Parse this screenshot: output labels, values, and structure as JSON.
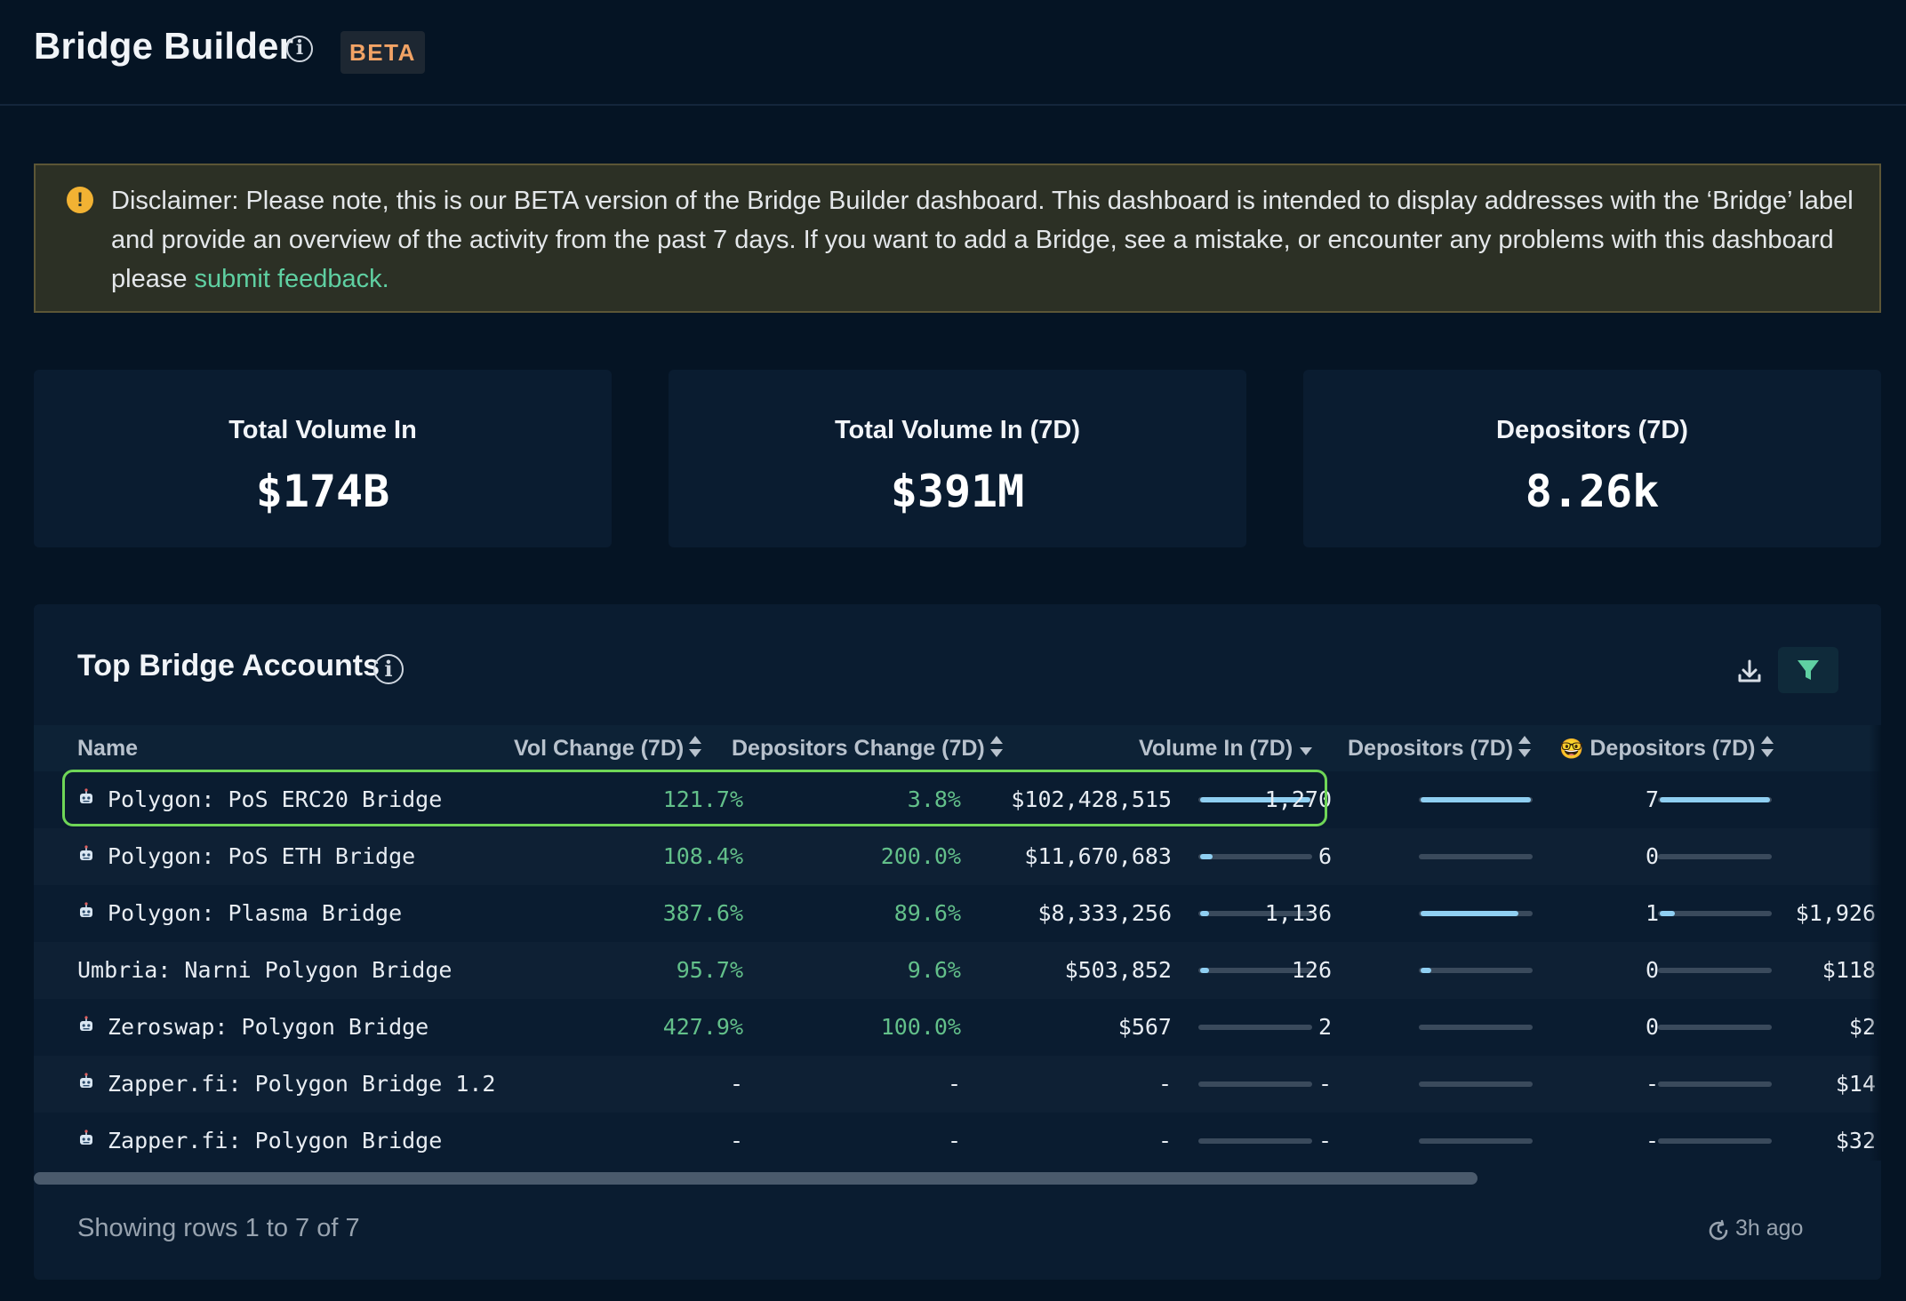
{
  "header": {
    "title": "Bridge Builder",
    "badge": "BETA"
  },
  "disclaimer": {
    "text": "Disclaimer: Please note, this is our BETA version of the Bridge Builder dashboard. This dashboard is intended to display addresses with the ‘Bridge’ label and provide an overview of the activity from the past 7 days. If you want to add a Bridge, see a mistake, or encounter any problems with this dashboard please ",
    "link_text": "submit feedback."
  },
  "stats": [
    {
      "label": "Total Volume In",
      "value": "$174B"
    },
    {
      "label": "Total Volume In (7D)",
      "value": "$391M"
    },
    {
      "label": "Depositors (7D)",
      "value": "8.26k"
    }
  ],
  "table": {
    "title": "Top Bridge Accounts",
    "columns": {
      "name": "Name",
      "vol_change": "Vol Change (7D)",
      "dep_change": "Depositors Change (7D)",
      "volume_in": "Volume In (7D)",
      "depositors": "Depositors (7D)",
      "smart_depositors": "Depositors (7D)",
      "smart_emoji": "🤓"
    },
    "rows": [
      {
        "name": "Polygon: PoS ERC20 Bridge",
        "has_icon": true,
        "vol_change": "121.7%",
        "dep_change": "3.8%",
        "volume_in": "$102,428,515",
        "volume_bar": 1.0,
        "depositors": "1,270",
        "depositors_bar": 1.0,
        "smart": "7",
        "smart_bar": 1.0,
        "extra": ""
      },
      {
        "name": "Polygon: PoS ETH Bridge",
        "has_icon": true,
        "vol_change": "108.4%",
        "dep_change": "200.0%",
        "volume_in": "$11,670,683",
        "volume_bar": 0.11,
        "depositors": "6",
        "depositors_bar": 0.0,
        "smart": "0",
        "smart_bar": 0.0,
        "extra": ""
      },
      {
        "name": "Polygon: Plasma Bridge",
        "has_icon": true,
        "vol_change": "387.6%",
        "dep_change": "89.6%",
        "volume_in": "$8,333,256",
        "volume_bar": 0.08,
        "depositors": "1,136",
        "depositors_bar": 0.89,
        "smart": "1",
        "smart_bar": 0.14,
        "extra": "$1,926"
      },
      {
        "name": "Umbria: Narni Polygon Bridge",
        "has_icon": false,
        "vol_change": "95.7%",
        "dep_change": "9.6%",
        "volume_in": "$503,852",
        "volume_bar": 0.005,
        "depositors": "126",
        "depositors_bar": 0.1,
        "smart": "0",
        "smart_bar": 0.0,
        "extra": "$118"
      },
      {
        "name": "Zeroswap: Polygon Bridge",
        "has_icon": true,
        "vol_change": "427.9%",
        "dep_change": "100.0%",
        "volume_in": "$567",
        "volume_bar": 0.0,
        "depositors": "2",
        "depositors_bar": 0.0,
        "smart": "0",
        "smart_bar": 0.0,
        "extra": "$2"
      },
      {
        "name": "Zapper.fi: Polygon Bridge 1.2",
        "has_icon": true,
        "vol_change": "-",
        "dep_change": "-",
        "volume_in": "-",
        "volume_bar": 0.0,
        "depositors": "-",
        "depositors_bar": 0.0,
        "smart": "-",
        "smart_bar": 0.0,
        "extra": "$14"
      },
      {
        "name": "Zapper.fi: Polygon Bridge",
        "has_icon": true,
        "vol_change": "-",
        "dep_change": "-",
        "volume_in": "-",
        "volume_bar": 0.0,
        "depositors": "-",
        "depositors_bar": 0.0,
        "smart": "-",
        "smart_bar": 0.0,
        "extra": "$32"
      }
    ],
    "footer": "Showing rows 1 to 7 of 7",
    "updated": "3h ago"
  },
  "icons": {
    "title_info": "info-icon",
    "warning": "warning-icon",
    "download": "download-icon",
    "filter": "filter-icon",
    "robot": "robot-icon",
    "clock": "clock-icon"
  },
  "colors": {
    "positive": "#63c08a",
    "link": "#5fd0a2",
    "bar_fill": "#8fcff2",
    "highlight": "#6fd657",
    "beta": "#f2a365"
  }
}
